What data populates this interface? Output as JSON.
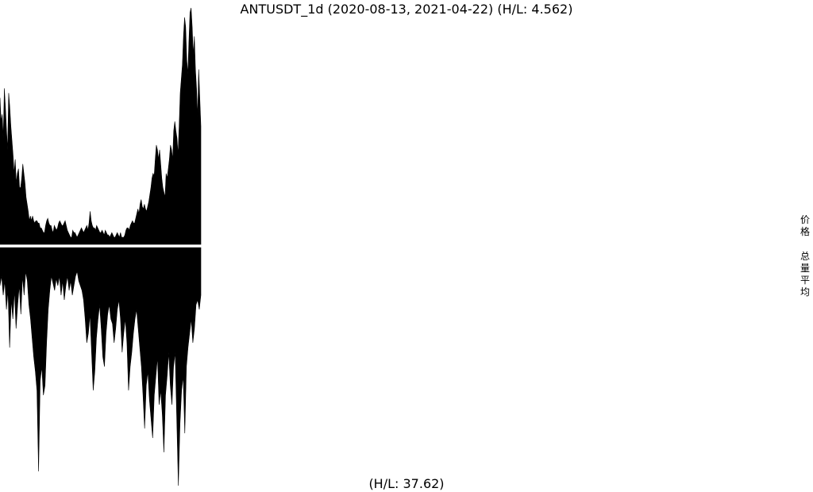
{
  "chart_data": [
    {
      "type": "area",
      "title": "ANTUSDT_1d (2020-08-13, 2021-04-22) (H/L: 4.562)",
      "ylabel": "价格",
      "x_range": [
        "2020-08-13",
        "2021-04-22"
      ],
      "high_low_ratio": 4.562,
      "grid": false,
      "color": "#000000",
      "values": [
        0.62,
        0.52,
        0.55,
        0.45,
        0.66,
        0.58,
        0.48,
        0.4,
        0.64,
        0.58,
        0.5,
        0.44,
        0.38,
        0.3,
        0.36,
        0.26,
        0.3,
        0.32,
        0.24,
        0.24,
        0.28,
        0.34,
        0.3,
        0.26,
        0.2,
        0.17,
        0.14,
        0.1,
        0.12,
        0.1,
        0.12,
        0.1,
        0.09,
        0.1,
        0.1,
        0.09,
        0.09,
        0.07,
        0.07,
        0.06,
        0.05,
        0.05,
        0.08,
        0.1,
        0.11,
        0.09,
        0.08,
        0.08,
        0.06,
        0.05,
        0.08,
        0.07,
        0.06,
        0.07,
        0.09,
        0.1,
        0.09,
        0.08,
        0.08,
        0.09,
        0.1,
        0.08,
        0.06,
        0.05,
        0.04,
        0.03,
        0.03,
        0.06,
        0.05,
        0.05,
        0.04,
        0.03,
        0.04,
        0.05,
        0.06,
        0.07,
        0.06,
        0.05,
        0.06,
        0.07,
        0.08,
        0.06,
        0.09,
        0.14,
        0.1,
        0.08,
        0.07,
        0.07,
        0.06,
        0.08,
        0.07,
        0.06,
        0.05,
        0.05,
        0.06,
        0.05,
        0.04,
        0.06,
        0.05,
        0.04,
        0.04,
        0.03,
        0.04,
        0.05,
        0.04,
        0.03,
        0.03,
        0.04,
        0.05,
        0.04,
        0.03,
        0.05,
        0.03,
        0.03,
        0.03,
        0.04,
        0.06,
        0.07,
        0.07,
        0.06,
        0.08,
        0.09,
        0.1,
        0.09,
        0.09,
        0.11,
        0.13,
        0.15,
        0.13,
        0.17,
        0.19,
        0.16,
        0.15,
        0.17,
        0.15,
        0.14,
        0.16,
        0.18,
        0.21,
        0.24,
        0.28,
        0.3,
        0.29,
        0.36,
        0.42,
        0.4,
        0.36,
        0.4,
        0.34,
        0.28,
        0.24,
        0.22,
        0.2,
        0.3,
        0.28,
        0.32,
        0.36,
        0.42,
        0.4,
        0.36,
        0.48,
        0.52,
        0.48,
        0.45,
        0.38,
        0.5,
        0.64,
        0.7,
        0.76,
        0.88,
        0.96,
        0.92,
        0.78,
        0.72,
        0.86,
        0.98,
        1.0,
        0.92,
        0.8,
        0.88,
        0.74,
        0.66,
        0.54,
        0.74,
        0.62,
        0.5
      ]
    },
    {
      "type": "area",
      "title": "(H/L: 37.62)",
      "ylabel": "总量平均",
      "high_low_ratio": 37.62,
      "grid": false,
      "color": "#000000",
      "values": [
        0.16,
        0.12,
        0.2,
        0.14,
        0.26,
        0.18,
        0.42,
        0.22,
        0.3,
        0.18,
        0.34,
        0.24,
        0.16,
        0.28,
        0.12,
        0.2,
        0.1,
        0.14,
        0.24,
        0.3,
        0.38,
        0.46,
        0.52,
        0.6,
        0.94,
        0.56,
        0.5,
        0.62,
        0.58,
        0.4,
        0.26,
        0.18,
        0.12,
        0.15,
        0.18,
        0.13,
        0.16,
        0.12,
        0.2,
        0.14,
        0.22,
        0.16,
        0.12,
        0.18,
        0.14,
        0.2,
        0.16,
        0.12,
        0.1,
        0.14,
        0.16,
        0.18,
        0.22,
        0.3,
        0.4,
        0.36,
        0.28,
        0.44,
        0.6,
        0.52,
        0.38,
        0.3,
        0.24,
        0.34,
        0.46,
        0.5,
        0.36,
        0.28,
        0.24,
        0.3,
        0.32,
        0.4,
        0.34,
        0.26,
        0.22,
        0.3,
        0.44,
        0.36,
        0.3,
        0.4,
        0.6,
        0.5,
        0.44,
        0.36,
        0.3,
        0.26,
        0.34,
        0.42,
        0.5,
        0.62,
        0.76,
        0.58,
        0.52,
        0.64,
        0.72,
        0.8,
        0.62,
        0.54,
        0.46,
        0.66,
        0.6,
        0.7,
        0.86,
        0.62,
        0.54,
        0.44,
        0.58,
        0.66,
        0.5,
        0.44,
        0.72,
        1.0,
        0.74,
        0.6,
        0.54,
        0.78,
        0.5,
        0.42,
        0.36,
        0.3,
        0.4,
        0.34,
        0.24,
        0.22,
        0.26,
        0.2
      ]
    }
  ]
}
